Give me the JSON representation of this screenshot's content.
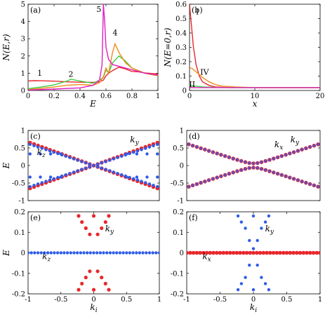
{
  "colors": {
    "red": "#e8282d",
    "blue": "#2f5bea",
    "green": "#3ccf3c",
    "orange": "#f08a1c",
    "magenta": "#e020c0",
    "purple": "#6a4ab0"
  },
  "chart_data": [
    {
      "id": "a",
      "type": "line",
      "panel_label": "(a)",
      "xlabel": "E",
      "ylabel": "N(E,r)",
      "xlim": [
        0,
        1
      ],
      "ylim": [
        0,
        5
      ],
      "xticks": [
        "0",
        "0.2",
        "0.4",
        "0.6",
        "0.8",
        "1"
      ],
      "yticks": [
        "0",
        "1",
        "2",
        "3",
        "4",
        "5"
      ],
      "annotations": [
        {
          "text": "1",
          "x": 0.09,
          "y": 0.85,
          "color": "red"
        },
        {
          "text": "2",
          "x": 0.33,
          "y": 0.8,
          "color": "green"
        },
        {
          "text": "4",
          "x": 0.67,
          "y": 3.2,
          "color": "orange"
        },
        {
          "text": "5",
          "x": 0.545,
          "y": 4.55,
          "color": "magenta"
        }
      ],
      "series": [
        {
          "color": "red",
          "x": [
            0.0,
            0.05,
            0.1,
            0.2,
            0.3,
            0.4,
            0.5,
            0.55,
            0.58,
            0.6,
            0.62,
            0.65,
            0.7,
            0.75,
            0.8,
            0.85,
            0.9,
            1.0
          ],
          "y": [
            0.55,
            0.57,
            0.56,
            0.54,
            0.5,
            0.48,
            0.47,
            0.5,
            0.6,
            0.85,
            1.0,
            1.15,
            1.35,
            1.25,
            1.1,
            1.08,
            1.02,
            0.95
          ]
        },
        {
          "color": "green",
          "x": [
            0.0,
            0.1,
            0.2,
            0.3,
            0.33,
            0.4,
            0.5,
            0.55,
            0.58,
            0.6,
            0.62,
            0.65,
            0.7,
            0.75,
            0.8,
            0.9,
            1.0
          ],
          "y": [
            0.1,
            0.2,
            0.32,
            0.55,
            0.65,
            0.55,
            0.42,
            0.6,
            0.75,
            1.2,
            1.0,
            1.6,
            2.0,
            1.7,
            1.3,
            1.0,
            0.85
          ]
        },
        {
          "color": "orange",
          "x": [
            0.0,
            0.1,
            0.2,
            0.3,
            0.4,
            0.5,
            0.55,
            0.58,
            0.6,
            0.62,
            0.65,
            0.67,
            0.7,
            0.75,
            0.8,
            0.9,
            1.0
          ],
          "y": [
            0.05,
            0.12,
            0.2,
            0.3,
            0.35,
            0.3,
            0.45,
            0.8,
            1.3,
            1.0,
            2.2,
            2.7,
            2.2,
            1.6,
            1.3,
            1.0,
            0.85
          ]
        },
        {
          "color": "magenta",
          "x": [
            0.0,
            0.2,
            0.4,
            0.5,
            0.55,
            0.57,
            0.58,
            0.59,
            0.6,
            0.62,
            0.65,
            0.7,
            0.8,
            0.9,
            1.0
          ],
          "y": [
            0.02,
            0.08,
            0.15,
            0.3,
            0.6,
            1.5,
            5.0,
            4.0,
            2.5,
            1.8,
            1.5,
            1.4,
            1.2,
            1.0,
            0.9
          ]
        }
      ]
    },
    {
      "id": "b",
      "type": "line",
      "panel_label": "(b)",
      "xlabel": "x",
      "ylabel": "N(E=0,r)",
      "xlim": [
        0,
        20
      ],
      "ylim": [
        0,
        0.6
      ],
      "xticks": [
        "0",
        "10",
        "20"
      ],
      "yticks": [
        "0",
        "0.1",
        "0.2",
        "0.3",
        "0.4",
        "0.5",
        "0.6"
      ],
      "annotations": [
        {
          "text": "I",
          "x": 1.2,
          "y": 0.53,
          "color": "red"
        },
        {
          "text": "IV",
          "x": 2.3,
          "y": 0.11,
          "color": "orange"
        },
        {
          "text": "II",
          "x": 0.4,
          "y": 0.025,
          "color": "green"
        }
      ],
      "series": [
        {
          "color": "red",
          "x": [
            0,
            0.3,
            0.6,
            1,
            1.5,
            2,
            3,
            4,
            6,
            10,
            20
          ],
          "y": [
            0.6,
            0.45,
            0.3,
            0.18,
            0.1,
            0.06,
            0.035,
            0.025,
            0.02,
            0.02,
            0.02
          ]
        },
        {
          "color": "orange",
          "x": [
            0,
            0.5,
            1,
            2,
            3,
            4,
            5,
            7,
            10,
            20
          ],
          "y": [
            0.16,
            0.15,
            0.13,
            0.09,
            0.06,
            0.04,
            0.03,
            0.025,
            0.02,
            0.02
          ]
        },
        {
          "color": "green",
          "x": [
            0,
            1,
            2,
            5,
            10,
            20
          ],
          "y": [
            0.035,
            0.03,
            0.025,
            0.02,
            0.02,
            0.02
          ]
        },
        {
          "color": "magenta",
          "x": [
            0,
            1,
            3,
            10,
            20
          ],
          "y": [
            0.02,
            0.02,
            0.02,
            0.02,
            0.02
          ]
        }
      ]
    },
    {
      "id": "c",
      "type": "scatter",
      "panel_label": "(c)",
      "xlabel": "",
      "ylabel": "E",
      "xlim": [
        -1,
        1
      ],
      "ylim": [
        -1,
        1
      ],
      "xticks": [],
      "yticks": [
        "-1",
        "-0.5",
        "0",
        "0.5",
        "1"
      ],
      "annotations": [
        {
          "text": "k",
          "sub": "y",
          "x": 0.62,
          "y": 0.66,
          "color": "red"
        },
        {
          "text": "k",
          "sub": "z",
          "x": -0.8,
          "y": 0.3,
          "color": "blue"
        }
      ],
      "series": [
        {
          "name": "k_y",
          "color": "red",
          "kind": "linear",
          "slope": 0.67,
          "gap": 0.0,
          "xrange": [
            -0.97,
            0.97
          ],
          "n": 33,
          "radius": 2.8
        },
        {
          "name": "k_z",
          "color": "blue",
          "kind": "linear",
          "slope": 0.62,
          "gap": 0.0,
          "xrange": [
            -0.97,
            0.97
          ],
          "n": 33,
          "radius": 2.2
        },
        {
          "name": "k_z-flat",
          "color": "blue",
          "kind": "flat",
          "values": [
            0.33,
            -0.33
          ],
          "xrange": [
            -0.97,
            -0.5,
            0.5,
            0.97
          ],
          "n": 8,
          "radius": 2.2
        }
      ]
    },
    {
      "id": "d",
      "type": "scatter",
      "panel_label": "(d)",
      "xlabel": "",
      "ylabel": "",
      "xlim": [
        -1,
        1
      ],
      "ylim": [
        -1,
        1
      ],
      "xticks": [],
      "yticks": [
        "-1",
        "-0.5",
        "0",
        "0.5",
        "1"
      ],
      "annotations": [
        {
          "text": "k",
          "sub": "y",
          "x": 0.62,
          "y": 0.66,
          "color": "blue"
        },
        {
          "text": "k",
          "sub": "x",
          "x": 0.38,
          "y": 0.52,
          "color": "red"
        }
      ],
      "series": [
        {
          "name": "k_x",
          "color": "red",
          "kind": "hyperbola",
          "slope": 0.62,
          "gap": 0.06,
          "xrange": [
            -0.97,
            0.97
          ],
          "n": 33,
          "radius": 2.8
        },
        {
          "name": "k_y",
          "color": "purple",
          "kind": "hyperbola",
          "slope": 0.62,
          "gap": 0.06,
          "xrange": [
            -0.97,
            0.97
          ],
          "n": 33,
          "radius": 2.2
        }
      ]
    },
    {
      "id": "e",
      "type": "scatter",
      "panel_label": "(e)",
      "xlabel": "k_i",
      "ylabel": "E",
      "xlim": [
        -1,
        1
      ],
      "ylim": [
        -0.2,
        0.2
      ],
      "xticks": [
        "-1",
        "-0.5",
        "0",
        "0.5",
        "1"
      ],
      "yticks": [
        "-0.2",
        "-0.1",
        "0",
        "0.1",
        "0.2"
      ],
      "annotations": [
        {
          "text": "k",
          "sub": "y",
          "x": 0.24,
          "y": 0.105,
          "color": "red"
        },
        {
          "text": "k",
          "sub": "z",
          "x": -0.72,
          "y": -0.03,
          "color": "blue"
        }
      ],
      "series": [
        {
          "name": "k_y",
          "color": "red",
          "kind": "points",
          "x": [
            -0.23,
            0.0,
            0.23,
            -0.18,
            0.18,
            -0.12,
            0.12,
            -0.06,
            0.06,
            -0.06,
            0.06,
            -0.12,
            0.12,
            -0.18,
            0.18,
            -0.23,
            0.0,
            0.23
          ],
          "y": [
            0.18,
            0.18,
            0.18,
            0.15,
            0.15,
            0.12,
            0.12,
            0.09,
            0.09,
            -0.09,
            -0.09,
            -0.12,
            -0.12,
            -0.15,
            -0.15,
            -0.18,
            -0.18,
            -0.18
          ],
          "radius": 2.6
        },
        {
          "name": "k_z",
          "color": "blue",
          "kind": "flat",
          "values": [
            0.0
          ],
          "xrange": [
            -1.0,
            1.0
          ],
          "n": 41,
          "radius": 2.2
        }
      ]
    },
    {
      "id": "f",
      "type": "scatter",
      "panel_label": "(f)",
      "xlabel": "k_i",
      "ylabel": "",
      "xlim": [
        -1,
        1
      ],
      "ylim": [
        -0.2,
        0.2
      ],
      "xticks": [
        "-1",
        "-0.5",
        "0",
        "0.5",
        "1"
      ],
      "yticks": [
        "-0.2",
        "-0.1",
        "0",
        "0.1",
        "0.2"
      ],
      "annotations": [
        {
          "text": "k",
          "sub": "y",
          "x": 0.24,
          "y": 0.105,
          "color": "blue"
        },
        {
          "text": "k",
          "sub": "x",
          "x": -0.7,
          "y": -0.03,
          "color": "red"
        }
      ],
      "series": [
        {
          "name": "k_x",
          "color": "red",
          "kind": "flat",
          "values": [
            0.0
          ],
          "xrange": [
            -1.0,
            1.0
          ],
          "n": 41,
          "radius": 2.8
        },
        {
          "name": "k_y",
          "color": "blue",
          "kind": "points",
          "x": [
            -0.23,
            0.0,
            0.23,
            -0.18,
            0.18,
            -0.12,
            0.12,
            -0.06,
            0.06,
            0.0,
            -0.06,
            0.06,
            -0.12,
            0.12,
            -0.18,
            0.18,
            -0.23,
            0.0,
            0.23
          ],
          "y": [
            0.18,
            0.18,
            0.18,
            0.15,
            0.15,
            0.12,
            0.12,
            0.06,
            0.06,
            0.02,
            -0.06,
            -0.06,
            -0.12,
            -0.12,
            -0.15,
            -0.15,
            -0.18,
            -0.18,
            -0.18
          ],
          "radius": 2.2
        }
      ]
    }
  ]
}
